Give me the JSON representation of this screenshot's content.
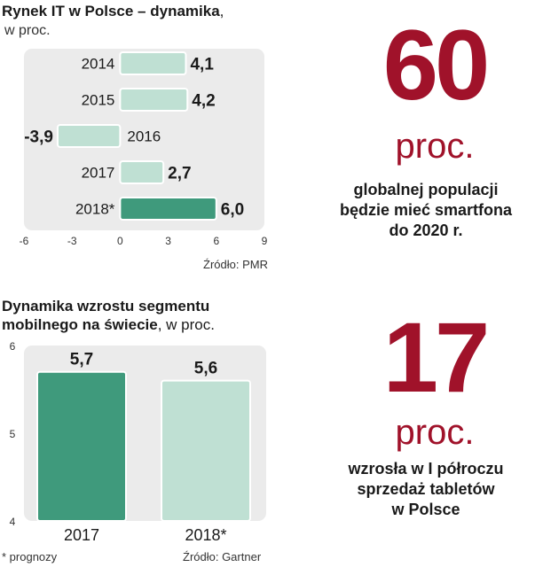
{
  "chart1": {
    "title_bold": "Rynek IT w Polsce – dynamika",
    "title_rest": ",",
    "subtitle": "w proc.",
    "source": "Źródło: PMR"
  },
  "chart2": {
    "title_line1": "Dynamika wzrostu segmentu",
    "title_line2_bold": "mobilnego na świecie",
    "title_line2_rest": ", w proc.",
    "footnote": "* prognozy",
    "source": "Źródło: Gartner"
  },
  "stat1": {
    "number": "60",
    "unit": "proc.",
    "line1": "globalnej populacji",
    "line2": "będzie mieć smartfona",
    "line3": "do 2020 r."
  },
  "stat2": {
    "number": "17",
    "unit": "proc.",
    "line1": "wzrosła w I półroczu",
    "line2": "sprzedaż tabletów",
    "line3": "w Polsce"
  },
  "colors": {
    "accent": "#a0122a",
    "bar_light": "#bfe0d3",
    "bar_dark": "#3f9a7c",
    "panel": "#ebebeb"
  },
  "chart_data": [
    {
      "type": "bar",
      "orientation": "horizontal",
      "categories": [
        "2014",
        "2015",
        "2016",
        "2017",
        "2018*"
      ],
      "values": [
        4.1,
        4.2,
        -3.9,
        2.7,
        6.0
      ],
      "value_labels": [
        "4,1",
        "4,2",
        "-3,9",
        "2,7",
        "6,0"
      ],
      "highlight": [
        false,
        false,
        false,
        false,
        true
      ],
      "xlim": [
        -6,
        9
      ],
      "xticks": [
        "-6",
        "-3",
        "0",
        "3",
        "6",
        "9"
      ]
    },
    {
      "type": "bar",
      "orientation": "vertical",
      "categories": [
        "2017",
        "2018*"
      ],
      "values": [
        5.7,
        5.6
      ],
      "value_labels": [
        "5,7",
        "5,6"
      ],
      "highlight": [
        true,
        false
      ],
      "ylim": [
        4,
        6
      ],
      "yticks": [
        "4",
        "5",
        "6"
      ]
    }
  ]
}
